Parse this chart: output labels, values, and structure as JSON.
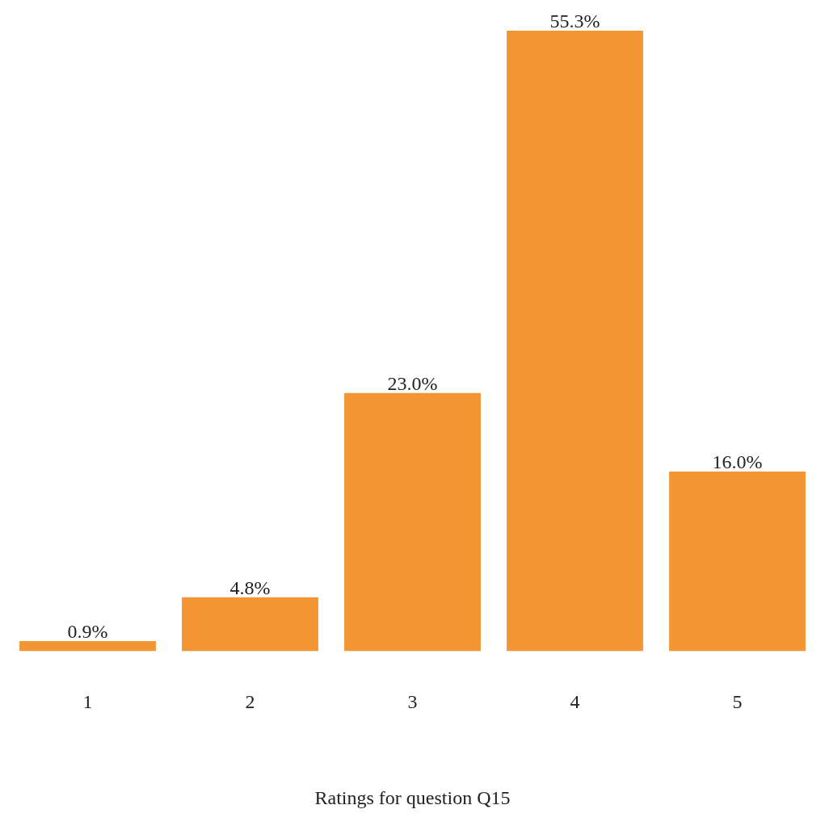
{
  "chart_data": {
    "type": "bar",
    "xlabel": "Ratings for question Q15",
    "categories": [
      "1",
      "2",
      "3",
      "4",
      "5"
    ],
    "values": [
      0.9,
      4.8,
      23.0,
      55.3,
      16.0
    ],
    "value_labels": [
      "0.9%",
      "4.8%",
      "23.0%",
      "55.3%",
      "16.0%"
    ],
    "color": "#f39533",
    "grid": false,
    "legend": false,
    "tick_labels": "x"
  }
}
